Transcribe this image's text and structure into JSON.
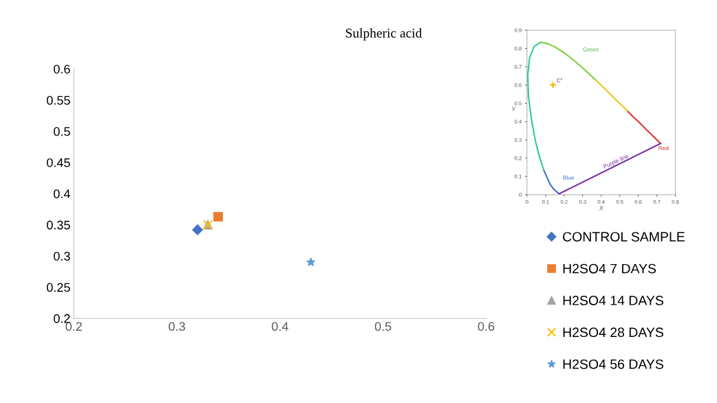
{
  "chart_data": [
    {
      "type": "scatter",
      "title": "Sulpheric acid",
      "xlim": [
        0.2,
        0.6
      ],
      "ylim": [
        0.2,
        0.6
      ],
      "xticks": [
        0.2,
        0.3,
        0.4,
        0.5,
        0.6
      ],
      "yticks": [
        0.2,
        0.25,
        0.3,
        0.35,
        0.4,
        0.45,
        0.5,
        0.55,
        0.6
      ],
      "grid": false,
      "legend": "right",
      "series": [
        {
          "name": "CONTROL SAMPLE",
          "color": "#4472c4",
          "marker": "diamond",
          "x": [
            0.32
          ],
          "values": [
            0.342
          ]
        },
        {
          "name": "H2SO4 7 DAYS",
          "color": "#ed7d31",
          "marker": "square",
          "x": [
            0.34
          ],
          "values": [
            0.363
          ]
        },
        {
          "name": "H2SO4 14 DAYS",
          "color": "#a5a5a5",
          "marker": "triangle",
          "x": [
            0.33
          ],
          "values": [
            0.35
          ]
        },
        {
          "name": "H2SO4 28 DAYS",
          "color": "#ffc000",
          "marker": "cross",
          "x": [
            0.33
          ],
          "values": [
            0.35
          ]
        },
        {
          "name": "H2SO4 56 DAYS",
          "color": "#5b9bd5",
          "marker": "star",
          "x": [
            0.43
          ],
          "values": [
            0.29
          ]
        }
      ]
    },
    {
      "type": "line",
      "xlabel": "X",
      "ylabel": "Y",
      "xlim": [
        0,
        0.8
      ],
      "ylim": [
        0,
        0.9
      ],
      "xticks": [
        0,
        0.1,
        0.2,
        0.3,
        0.4,
        0.5,
        0.6,
        0.7,
        0.8
      ],
      "yticks": [
        0,
        0.1,
        0.2,
        0.3,
        0.4,
        0.5,
        0.6,
        0.7,
        0.8,
        0.9
      ],
      "grid": false,
      "legend": false,
      "series": [
        {
          "color": "#3a6fd0",
          "x": [
            0.174,
            0.167,
            0.144,
            0.124,
            0.091
          ],
          "values": [
            0.005,
            0.009,
            0.03,
            0.058,
            0.133
          ]
        },
        {
          "color": "#2cc9a0",
          "x": [
            0.091,
            0.069,
            0.045,
            0.024,
            0.008,
            0.004,
            0.014,
            0.039,
            0.074
          ],
          "values": [
            0.133,
            0.201,
            0.295,
            0.413,
            0.538,
            0.655,
            0.75,
            0.812,
            0.834
          ]
        },
        {
          "color": "#7ccf3a",
          "x": [
            0.074,
            0.114,
            0.155,
            0.193,
            0.23,
            0.266,
            0.302,
            0.337,
            0.373
          ],
          "values": [
            0.834,
            0.826,
            0.806,
            0.782,
            0.754,
            0.724,
            0.692,
            0.659,
            0.625
          ]
        },
        {
          "color": "#e8c81f",
          "x": [
            0.373,
            0.409,
            0.444,
            0.479,
            0.513,
            0.545
          ],
          "values": [
            0.625,
            0.59,
            0.555,
            0.52,
            0.487,
            0.454
          ]
        },
        {
          "color": "#e03030",
          "x": [
            0.545,
            0.575,
            0.603,
            0.627,
            0.648,
            0.666,
            0.692,
            0.72
          ],
          "values": [
            0.454,
            0.424,
            0.397,
            0.373,
            0.351,
            0.334,
            0.308,
            0.28
          ]
        },
        {
          "color": "#7030a0",
          "x": [
            0.72,
            0.174
          ],
          "values": [
            0.28,
            0.005
          ]
        },
        {
          "type": "scatter",
          "color": "#f0b400",
          "marker": "plus",
          "x": [
            0.14
          ],
          "values": [
            0.6
          ]
        }
      ],
      "annotations": [
        "Green",
        "Red",
        "Blue",
        "Purple line",
        {
          "text": "C\"",
          "x": 0.14,
          "y": 0.6
        }
      ]
    }
  ]
}
